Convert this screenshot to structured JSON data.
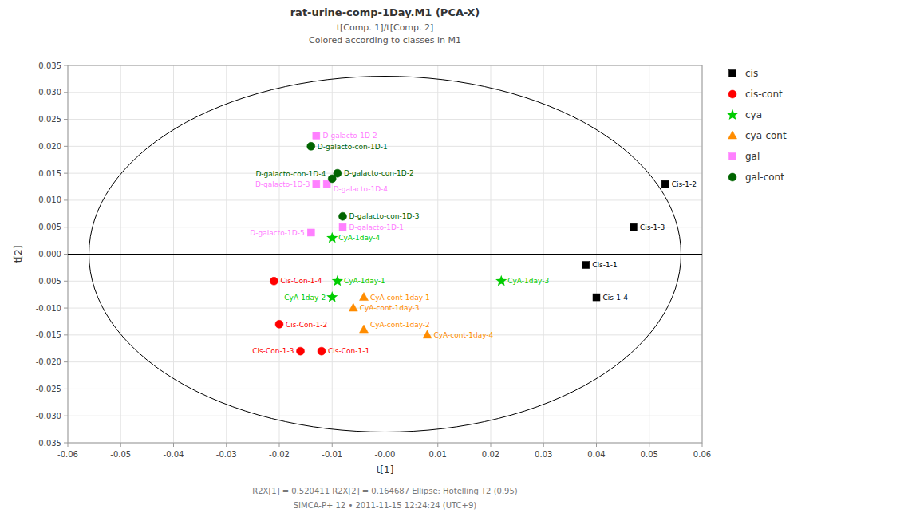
{
  "chart_data": {
    "type": "scatter",
    "title": "rat-urine-comp-1Day.M1 (PCA-X)",
    "subtitle": [
      "t[Comp. 1]/t[Comp. 2]",
      "Colored according to classes in M1"
    ],
    "x_label": "t[1]",
    "y_label": "t[2]",
    "xlim": [
      -0.06,
      0.06
    ],
    "ylim": [
      -0.035,
      0.035
    ],
    "xticks": [
      -0.06,
      -0.05,
      -0.04,
      -0.03,
      -0.02,
      -0.01,
      {
        "value": 0,
        "label": "-0.00"
      },
      0.01,
      0.02,
      0.03,
      0.04,
      0.05,
      0.06
    ],
    "yticks": [
      -0.035,
      {
        "value": -0.03,
        "label": "-0.030"
      },
      -0.025,
      {
        "value": -0.02,
        "label": "-0.020"
      },
      -0.015,
      {
        "value": -0.01,
        "label": "-0.010"
      },
      -0.005,
      {
        "value": 0,
        "label": "-0.000"
      },
      0.005,
      {
        "value": 0.01,
        "label": "0.010"
      },
      0.015,
      {
        "value": 0.02,
        "label": "0.020"
      },
      0.025,
      {
        "value": 0.03,
        "label": "0.030"
      },
      0.035
    ],
    "grid": true,
    "legend": "right",
    "ellipse": {
      "center": [
        0.0,
        0.0
      ],
      "width": 0.112,
      "height": 0.066
    },
    "annotations": [
      "R2X[1] = 0.520411        R2X[2] = 0.164687        Ellipse: Hotelling T2 (0.95)",
      "SIMCA-P+ 12 • 2011-11-15 12:24:24 (UTC+9)"
    ],
    "series": [
      {
        "name": "cis",
        "color": "#000000",
        "marker": "square",
        "x": [
          0.053,
          0.047,
          0.038,
          0.04
        ],
        "values": [
          0.013,
          0.005,
          -0.002,
          -0.008
        ],
        "labels": [
          "Cis-1-2",
          "Cis-1-3",
          "Cis-1-1",
          "Cis-1-4"
        ]
      },
      {
        "name": "cis-cont",
        "color": "#ff0000",
        "marker": "circle",
        "x": [
          -0.021,
          -0.02,
          -0.016,
          -0.012
        ],
        "values": [
          -0.005,
          -0.013,
          -0.018,
          -0.018
        ],
        "labels": [
          "Cis-Con-1-4",
          "Cis-Con-1-2",
          "Cis-Con-1-3",
          "Cis-Con-1-1"
        ]
      },
      {
        "name": "cya",
        "color": "#00cc00",
        "marker": "star",
        "x": [
          -0.009,
          -0.01,
          0.022,
          -0.01
        ],
        "values": [
          -0.005,
          -0.008,
          -0.005,
          0.003
        ],
        "labels": [
          "CyA-1day-1",
          "CyA-1day-2",
          "CyA-1day-3",
          "CyA-1day-4"
        ]
      },
      {
        "name": "cya-cont",
        "color": "#ff8c00",
        "marker": "triangle",
        "x": [
          -0.004,
          -0.004,
          -0.006,
          0.008
        ],
        "values": [
          -0.008,
          -0.014,
          -0.01,
          -0.015
        ],
        "labels": [
          "CyA-cont-1day-1",
          "CyA-cont-1day-2",
          "CyA-cont-1day-3",
          "CyA-cont-1day-4"
        ]
      },
      {
        "name": "gal",
        "color": "#ff80ff",
        "marker": "square",
        "x": [
          -0.013,
          -0.011,
          -0.013,
          -0.008,
          -0.014
        ],
        "values": [
          0.022,
          0.013,
          0.013,
          0.005,
          0.004
        ],
        "labels": [
          "D-galacto-1D-2",
          "D-galacto-1D-4",
          "D-galacto-1D-3",
          "D-galacto-1D-1",
          "D-galacto-1D-5"
        ]
      },
      {
        "name": "gal-cont",
        "color": "#006400",
        "marker": "circle",
        "x": [
          -0.014,
          -0.009,
          -0.01,
          -0.008
        ],
        "values": [
          0.02,
          0.015,
          0.014,
          0.007
        ],
        "labels": [
          "D-galacto-con-1D-1",
          "D-galacto-con-1D-2",
          "D-galacto-con-1D-4",
          "D-galacto-con-1D-3"
        ]
      }
    ]
  }
}
